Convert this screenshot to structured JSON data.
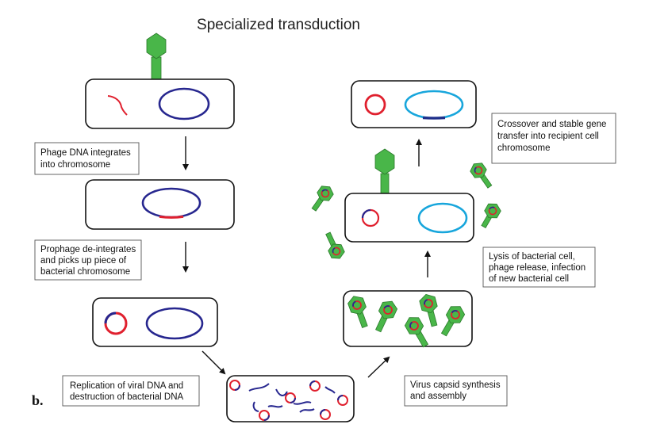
{
  "title": "Specialized transduction",
  "panel_label": "b.",
  "labels": {
    "integrate": [
      "Phage DNA integrates",
      "into chromosome"
    ],
    "deintegrate": [
      "Prophage de-integrates",
      "and picks up piece of",
      "bacterial chromosome"
    ],
    "replication": [
      "Replication of viral DNA and",
      "destruction of bacterial DNA"
    ],
    "capsid": [
      "Virus capsid synthesis",
      "and assembly"
    ],
    "lysis": [
      "Lysis of bacterial cell,",
      "phage release, infection",
      "of new bacterial cell"
    ],
    "crossover": [
      "Crossover and stable gene",
      "transfer into recipient cell",
      "chromosome"
    ]
  },
  "colors": {
    "phage_green": "#49b649",
    "viral_dna_red": "#e0202e",
    "bacterial_dna_blue": "#27278f",
    "recipient_dna_cyan": "#18a6dc"
  }
}
